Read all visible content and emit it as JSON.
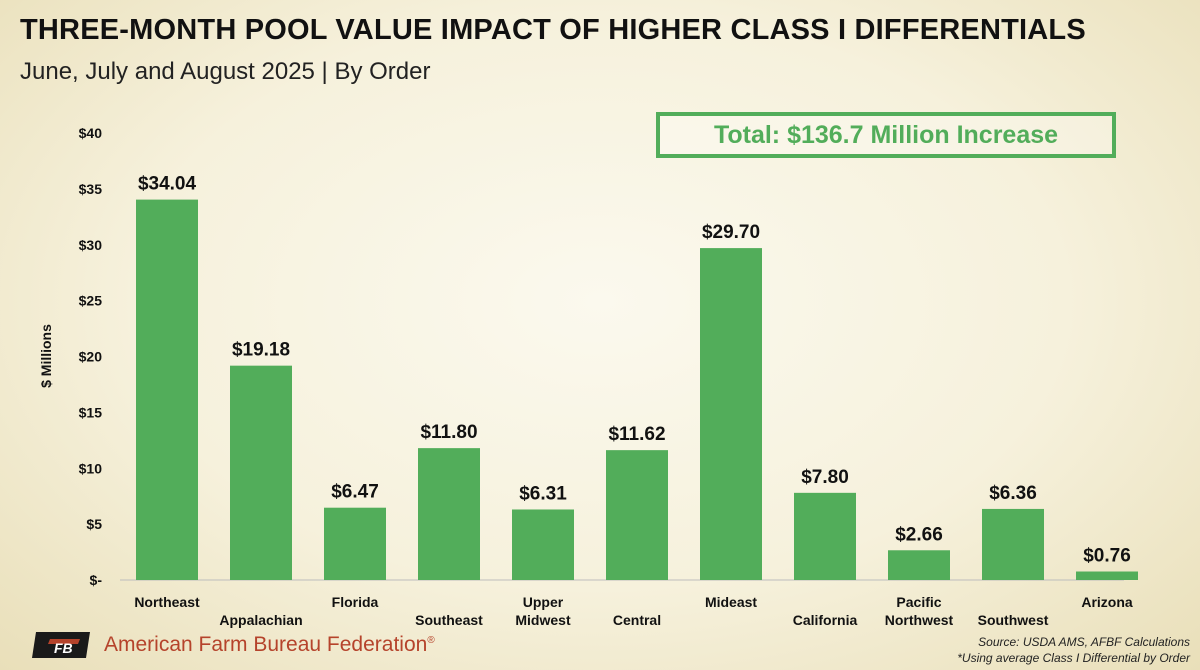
{
  "chart_data": {
    "type": "bar",
    "title": "THREE-MONTH POOL VALUE IMPACT OF HIGHER CLASS I DIFFERENTIALS",
    "subtitle": "June, July and August 2025 | By Order",
    "xlabel": "",
    "ylabel": "$ Millions",
    "ylim": [
      0,
      40
    ],
    "yticks": [
      0,
      5,
      10,
      15,
      20,
      25,
      30,
      35,
      40
    ],
    "ytick_labels": [
      "$-",
      "$5",
      "$10",
      "$15",
      "$20",
      "$25",
      "$30",
      "$35",
      "$40"
    ],
    "categories": [
      [
        "Northeast"
      ],
      [
        "Appalachian"
      ],
      [
        "Florida"
      ],
      [
        "Southeast"
      ],
      [
        "Upper",
        "Midwest"
      ],
      [
        "Central"
      ],
      [
        "Mideast"
      ],
      [
        "California"
      ],
      [
        "Pacific",
        "Northwest"
      ],
      [
        "Southwest"
      ],
      [
        "Arizona"
      ]
    ],
    "values": [
      34.04,
      19.18,
      6.47,
      11.8,
      6.31,
      11.62,
      29.7,
      7.8,
      2.66,
      6.36,
      0.76
    ],
    "data_labels": [
      "$34.04",
      "$19.18",
      "$6.47",
      "$11.80",
      "$6.31",
      "$11.62",
      "$29.70",
      "$7.80",
      "$2.66",
      "$6.36",
      "$0.76"
    ],
    "bar_color": "#52ad5a",
    "annotation": "Total: $136.7 Million Increase"
  },
  "footer": {
    "org_name": "American Farm Bureau Federation",
    "registered_mark": "®",
    "logo_text": "FB",
    "source": "Source: USDA AMS, AFBF Calculations",
    "note": "*Using average Class I Differential by Order"
  },
  "colors": {
    "accent": "#52ad5a",
    "brand": "#b5432b"
  }
}
